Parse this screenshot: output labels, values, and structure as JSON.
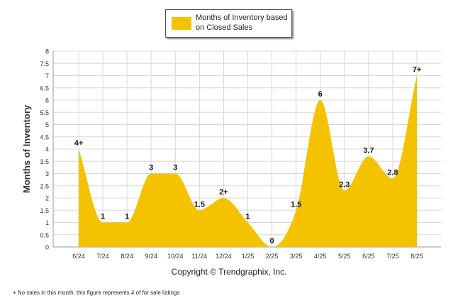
{
  "chart_data": {
    "type": "area",
    "categories": [
      "6/24",
      "7/24",
      "8/24",
      "9/24",
      "10/24",
      "11/24",
      "12/24",
      "1/25",
      "2/25",
      "3/25",
      "4/25",
      "5/25",
      "6/25",
      "7/25",
      "8/25"
    ],
    "series": [
      {
        "name": "Months of Inventory based on Closed Sales",
        "values": [
          4,
          1,
          1,
          3,
          3,
          1.5,
          2,
          1,
          0,
          1.5,
          6,
          2.3,
          3.7,
          2.8,
          7
        ],
        "labels": [
          "4+",
          "1",
          "1",
          "3",
          "3",
          "1.5",
          "2+",
          "1",
          "0",
          "1.5",
          "6",
          "2.3",
          "3.7",
          "2.8",
          "7+"
        ]
      }
    ],
    "ylabel": "Months of Inventory",
    "xlabel": "",
    "ylim": [
      0,
      8
    ],
    "yticks": [
      "0",
      "0.5",
      "1",
      "1.5",
      "2",
      "2.5",
      "3",
      "3.5",
      "4",
      "4.5",
      "5",
      "5.5",
      "6",
      "6.5",
      "7",
      "7.5",
      "8"
    ],
    "grid": true,
    "legend_position": "top-center",
    "colors": {
      "fill": "#F5C200",
      "grid": "#d8d8d8",
      "axis": "#999999"
    }
  },
  "legend": {
    "label": "Months of Inventory based on Closed Sales"
  },
  "copyright": "Copyright © Trendgraphix, Inc.",
  "footnote": "+  No sales in this month, this figure represents # of for sale listings"
}
